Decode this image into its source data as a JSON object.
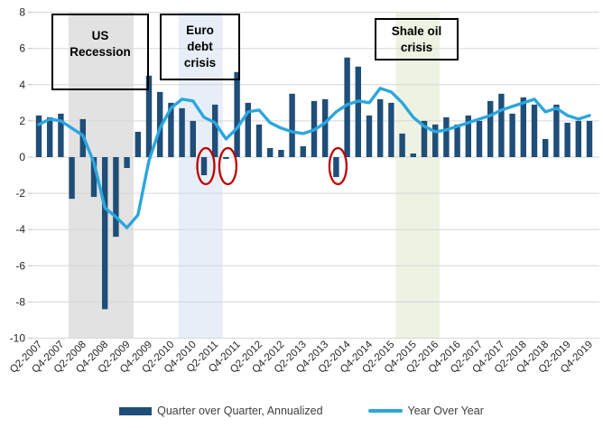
{
  "chart_data": {
    "type": "combo-bar-line",
    "title": "",
    "xlabel": "",
    "ylabel": "",
    "ylim": [
      -10,
      8
    ],
    "ytick_step": 2,
    "ytick_labels": [
      "8",
      "6",
      "4",
      "2",
      "0",
      "-2",
      "-4",
      "-6",
      "-8",
      "-10"
    ],
    "grid": true,
    "legend_position": "bottom",
    "categories": [
      "Q2-2007",
      "Q3-2007",
      "Q4-2007",
      "Q1-2008",
      "Q2-2008",
      "Q3-2008",
      "Q4-2008",
      "Q1-2009",
      "Q2-2009",
      "Q3-2009",
      "Q4-2009",
      "Q1-2010",
      "Q2-2010",
      "Q3-2010",
      "Q4-2010",
      "Q1-2011",
      "Q2-2011",
      "Q3-2011",
      "Q4-2011",
      "Q1-2012",
      "Q2-2012",
      "Q3-2012",
      "Q4-2012",
      "Q1-2013",
      "Q2-2013",
      "Q3-2013",
      "Q4-2013",
      "Q1-2014",
      "Q2-2014",
      "Q3-2014",
      "Q4-2014",
      "Q1-2015",
      "Q2-2015",
      "Q3-2015",
      "Q4-2015",
      "Q1-2016",
      "Q2-2016",
      "Q3-2016",
      "Q4-2016",
      "Q1-2017",
      "Q2-2017",
      "Q3-2017",
      "Q4-2017",
      "Q1-2018",
      "Q2-2018",
      "Q3-2018",
      "Q4-2018",
      "Q1-2019",
      "Q2-2019",
      "Q3-2019",
      "Q4-2019"
    ],
    "x_tick_labels": [
      "Q2-2007",
      "Q4-2007",
      "Q2-2008",
      "Q4-2008",
      "Q2-2009",
      "Q4-2009",
      "Q2-2010",
      "Q4-2010",
      "Q2-2011",
      "Q4-2011",
      "Q2-2012",
      "Q4-2012",
      "Q2-2013",
      "Q4-2013",
      "Q2-2014",
      "Q4-2014",
      "Q2-2015",
      "Q4-2015",
      "Q2-2016",
      "Q4-2016",
      "Q2-2017",
      "Q4-2017",
      "Q2-2018",
      "Q4-2018",
      "Q2-2019",
      "Q4-2019"
    ],
    "series": [
      {
        "name": "Quarter over Quarter, Annualized",
        "type": "bar",
        "color": "#1F4E79",
        "values": [
          2.3,
          2.2,
          2.4,
          -2.3,
          2.1,
          -2.2,
          -8.4,
          -4.4,
          -0.6,
          1.4,
          4.5,
          3.6,
          3.0,
          2.7,
          2.0,
          -1.0,
          2.9,
          -0.1,
          4.7,
          3.0,
          1.8,
          0.5,
          0.4,
          3.5,
          0.6,
          3.1,
          3.2,
          -1.1,
          5.5,
          5.0,
          2.3,
          3.2,
          3.0,
          1.3,
          0.2,
          2.0,
          1.8,
          2.2,
          1.8,
          2.3,
          2.0,
          3.1,
          3.5,
          2.4,
          3.3,
          2.9,
          1.0,
          2.9,
          1.9,
          2.0,
          2.0
        ]
      },
      {
        "name": "Year Over Year",
        "type": "line",
        "color": "#2BA6DE",
        "values": [
          1.8,
          2.1,
          2.0,
          1.6,
          1.2,
          -0.3,
          -2.8,
          -3.3,
          -3.9,
          -3.2,
          -0.2,
          1.6,
          2.7,
          3.2,
          3.1,
          2.2,
          1.9,
          1.0,
          1.6,
          2.5,
          2.6,
          1.9,
          1.6,
          1.4,
          1.3,
          1.5,
          1.9,
          2.5,
          2.9,
          3.1,
          3.0,
          3.8,
          3.6,
          3.0,
          2.2,
          1.7,
          1.4,
          1.5,
          1.7,
          1.9,
          2.1,
          2.3,
          2.6,
          2.8,
          3.0,
          3.2,
          2.5,
          2.7,
          2.3,
          2.1,
          2.3
        ]
      }
    ],
    "annotations": {
      "bands": [
        {
          "name": "us-recession-band",
          "label": "US Recession",
          "color": "#E2E2E2",
          "start_idx": 2.7,
          "end_idx": 8.6
        },
        {
          "name": "euro-debt-crisis-band",
          "label": "Euro debt crisis",
          "color": "#E7EEF8",
          "start_idx": 12.7,
          "end_idx": 16.7
        },
        {
          "name": "shale-oil-crisis-band",
          "label": "Shale oil crisis",
          "color": "#EDF2E2",
          "start_idx": 32.4,
          "end_idx": 36.4
        }
      ],
      "callout_boxes": [
        {
          "name": "us-recession-box",
          "text_lines": [
            "US",
            "Recession"
          ]
        },
        {
          "name": "euro-debt-crisis-box",
          "text_lines": [
            "Euro",
            "debt",
            "crisis"
          ]
        },
        {
          "name": "shale-oil-crisis-box",
          "text_lines": [
            "Shale oil",
            "crisis"
          ]
        }
      ],
      "circles": {
        "color": "#C00000",
        "quarters": [
          "Q1-2011",
          "Q3-2011",
          "Q1-2014"
        ],
        "quarter_idx": [
          15,
          17,
          27
        ]
      }
    },
    "legend": [
      "Quarter over Quarter, Annualized",
      "Year Over Year"
    ]
  }
}
